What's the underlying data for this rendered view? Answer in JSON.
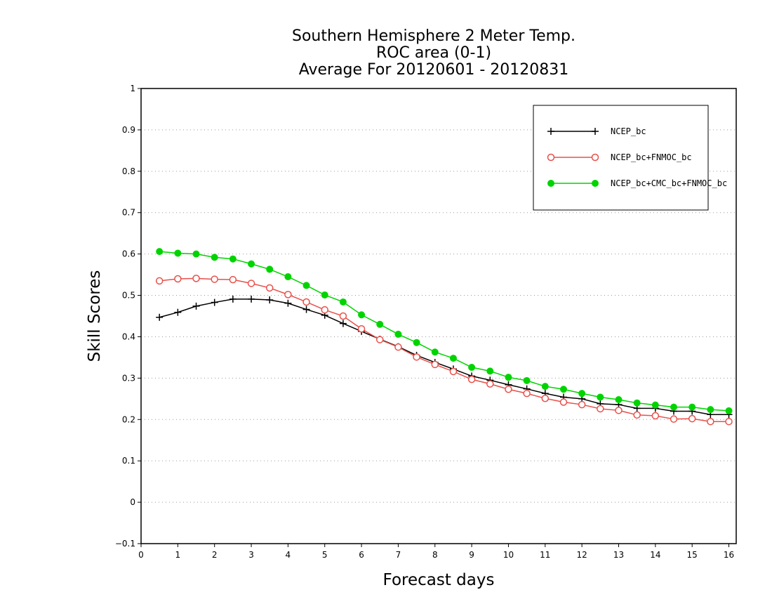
{
  "chart_data": {
    "type": "line",
    "title": [
      "Southern Hemisphere 2 Meter Temp.",
      "ROC area (0-1)",
      "Average For 20120601 - 20120831"
    ],
    "xlabel": "Forecast days",
    "ylabel": "Skill Scores",
    "xlim": [
      0,
      16.2
    ],
    "ylim": [
      -0.1,
      1
    ],
    "xticks": [
      0,
      1,
      2,
      3,
      4,
      5,
      6,
      7,
      8,
      9,
      10,
      11,
      12,
      13,
      14,
      15,
      16
    ],
    "yticks": [
      -0.1,
      0,
      0.1,
      0.2,
      0.3,
      0.4,
      0.5,
      0.6,
      0.7,
      0.8,
      0.9,
      1
    ],
    "ytick_labels": [
      "−0.1",
      "0",
      "0.1",
      "0.2",
      "0.3",
      "0.4",
      "0.5",
      "0.6",
      "0.7",
      "0.8",
      "0.9",
      "1"
    ],
    "grid": "horizontal dotted",
    "legend_position": "top-right",
    "x": [
      0.5,
      1,
      1.5,
      2,
      2.5,
      3,
      3.5,
      4,
      4.5,
      5,
      5.5,
      6,
      6.5,
      7,
      7.5,
      8,
      8.5,
      9,
      9.5,
      10,
      10.5,
      11,
      11.5,
      12,
      12.5,
      13,
      13.5,
      14,
      14.5,
      15,
      15.5,
      16
    ],
    "series": [
      {
        "name": "NCEP_bc",
        "color": "#000000",
        "marker": "plus",
        "values": [
          0.447,
          0.459,
          0.474,
          0.483,
          0.491,
          0.491,
          0.489,
          0.481,
          0.466,
          0.452,
          0.432,
          0.413,
          0.394,
          0.376,
          0.355,
          0.338,
          0.322,
          0.305,
          0.295,
          0.284,
          0.274,
          0.263,
          0.254,
          0.25,
          0.238,
          0.236,
          0.227,
          0.227,
          0.22,
          0.22,
          0.212,
          0.212
        ]
      },
      {
        "name": "NCEP_bc+FNMOC_bc",
        "color": "#e8504a",
        "marker": "open-circle",
        "values": [
          0.535,
          0.54,
          0.541,
          0.539,
          0.538,
          0.529,
          0.518,
          0.502,
          0.484,
          0.465,
          0.45,
          0.419,
          0.393,
          0.375,
          0.351,
          0.333,
          0.316,
          0.297,
          0.286,
          0.273,
          0.263,
          0.251,
          0.242,
          0.236,
          0.226,
          0.222,
          0.211,
          0.209,
          0.201,
          0.202,
          0.195,
          0.195
        ]
      },
      {
        "name": "NCEP_bc+CMC_bc+FNMOC_bc",
        "color": "#00d400",
        "marker": "filled-circle",
        "values": [
          0.606,
          0.602,
          0.6,
          0.592,
          0.588,
          0.576,
          0.563,
          0.545,
          0.524,
          0.501,
          0.484,
          0.453,
          0.43,
          0.406,
          0.386,
          0.363,
          0.348,
          0.326,
          0.317,
          0.302,
          0.294,
          0.28,
          0.273,
          0.263,
          0.254,
          0.248,
          0.24,
          0.235,
          0.23,
          0.23,
          0.224,
          0.221
        ]
      }
    ]
  }
}
